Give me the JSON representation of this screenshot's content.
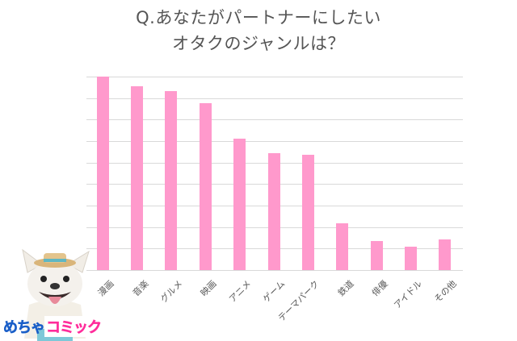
{
  "title": {
    "line1": "Q.あなたがパートナーにしたい",
    "line2": "オタクのジャンルは？"
  },
  "colors": {
    "bar": "#ff99cc",
    "grid": "#d9d9d9",
    "title": "#555555",
    "logo_blue": "#1a5fc8",
    "logo_pink": "#ff2d9b"
  },
  "logo": {
    "part1": "めちゃ",
    "part2": "コミック",
    "mascot": "french-bulldog-with-straw-hat"
  },
  "chart_data": {
    "type": "bar",
    "title": "Q.あなたがパートナーにしたいオタクのジャンルは？",
    "xlabel": "",
    "ylabel": "",
    "categories": [
      "漫画",
      "音楽",
      "グルメ",
      "映画",
      "アニメ",
      "ゲーム",
      "テーマパーク",
      "鉄道",
      "俳優",
      "アイドル",
      "その他"
    ],
    "values": [
      9.0,
      8.55,
      8.33,
      7.77,
      6.12,
      5.44,
      5.37,
      2.19,
      1.36,
      1.09,
      1.43
    ],
    "value_units": "relative (gridline units; no y-axis labels shown)",
    "ylim": [
      0,
      9
    ],
    "grid": true,
    "gridline_count": 10,
    "legend": null,
    "tick_label_rotation": -45
  }
}
